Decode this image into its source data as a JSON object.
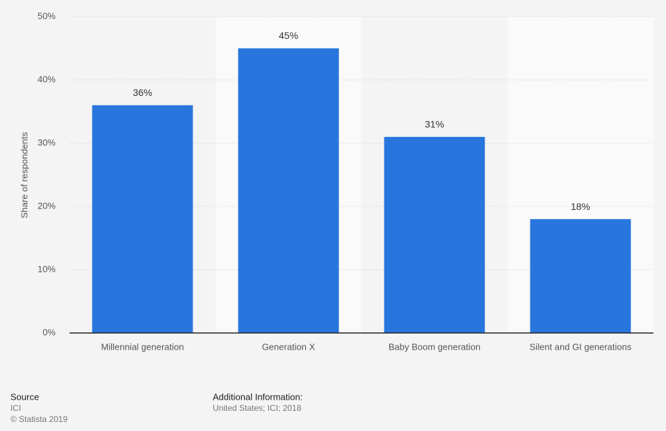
{
  "chart_data": {
    "type": "bar",
    "y_label": "Share of respondents",
    "categories": [
      "Millennial generation",
      "Generation X",
      "Baby Boom generation",
      "Silent and GI generations"
    ],
    "values": [
      36,
      45,
      31,
      18
    ],
    "value_labels": [
      "36%",
      "45%",
      "31%",
      "18%"
    ],
    "color": "#2876dd",
    "ylim": [
      0,
      50
    ],
    "yticks": [
      {
        "value": 0,
        "label": "0%"
      },
      {
        "value": 10,
        "label": "10%"
      },
      {
        "value": 20,
        "label": "20%"
      },
      {
        "value": 30,
        "label": "30%"
      },
      {
        "value": 40,
        "label": "40%"
      },
      {
        "value": 50,
        "label": "50%"
      }
    ],
    "grid": true
  },
  "footer": {
    "source_title": "Source",
    "source": "ICI",
    "copyright": "© Statista 2019",
    "info_title": "Additional Information:",
    "info": "United States; ICI; 2018"
  }
}
